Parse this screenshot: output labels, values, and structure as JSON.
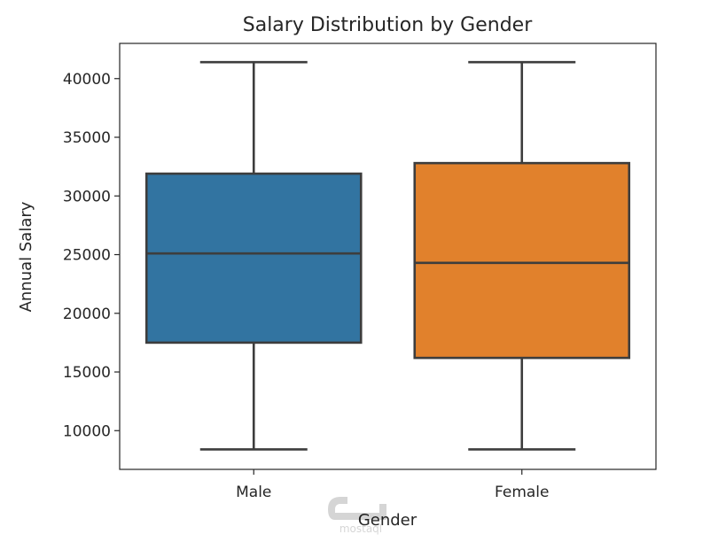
{
  "chart_data": {
    "type": "box",
    "title": "Salary Distribution by Gender",
    "xlabel": "Gender",
    "ylabel": "Annual Salary",
    "ylim": [
      6700,
      43000
    ],
    "yticks": [
      10000,
      15000,
      20000,
      25000,
      30000,
      35000,
      40000
    ],
    "grid": false,
    "categories": [
      "Male",
      "Female"
    ],
    "boxes": [
      {
        "category": "Male",
        "min": 8400,
        "q1": 17500,
        "median": 25100,
        "q3": 31900,
        "max": 41400,
        "color": "#3274a1"
      },
      {
        "category": "Female",
        "min": 8400,
        "q1": 16200,
        "median": 24300,
        "q3": 32800,
        "max": 41400,
        "color": "#e1812c"
      }
    ],
    "line_color": "#3d3d3d"
  },
  "watermark": {
    "text": "mostaql"
  }
}
